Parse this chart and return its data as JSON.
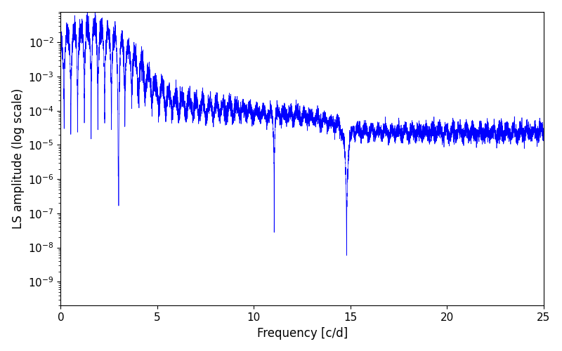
{
  "xlabel": "Frequency [c/d]",
  "ylabel": "LS amplitude (log scale)",
  "line_color": "#0000ff",
  "line_width": 0.5,
  "xmin": 0,
  "xmax": 25,
  "ymin": 2e-10,
  "ymax": 0.08,
  "figsize": [
    8.0,
    5.0
  ],
  "dpi": 100,
  "background_color": "#ffffff",
  "xticks": [
    0,
    5,
    10,
    15,
    20,
    25
  ],
  "seed": 77
}
